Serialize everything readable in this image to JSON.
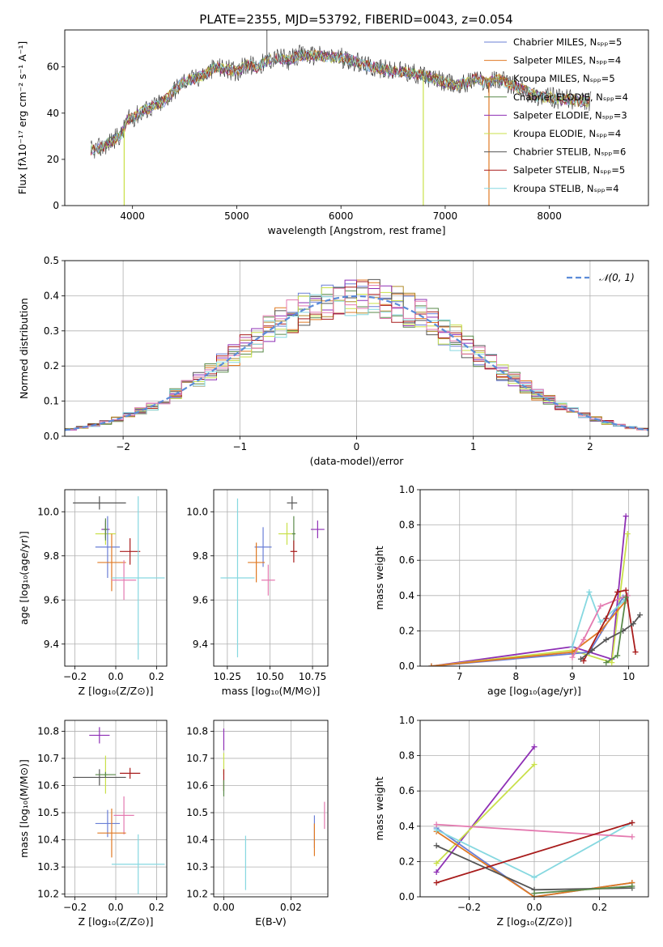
{
  "title": "PLATE=2355, MJD=53792, FIBERID=0043, z=0.054",
  "colors": {
    "chabrier_miles": "#6a7fd6",
    "salpeter_miles": "#e07a24",
    "kroupa_miles": "#b08a2a",
    "chabrier_elodie": "#5a8a4a",
    "salpeter_elodie": "#8e2fb5",
    "kroupa_elodie": "#c9e04a",
    "chabrier_stelib": "#555555",
    "salpeter_stelib": "#a81c1c",
    "kroupa_stelib": "#86d8e0",
    "pink": "#e47ab0",
    "gaussian": "#5b8bd8",
    "spectrum": "#333333"
  },
  "chart_data": [
    {
      "type": "line",
      "title": "PLATE=2355, MJD=53792, FIBERID=0043, z=0.054",
      "xlabel": "wavelength [Angstrom, rest frame]",
      "ylabel": "Flux [fλ10⁻¹⁷ erg cm⁻² s⁻¹ A⁻¹]",
      "xlim": [
        3350,
        8950
      ],
      "ylim": [
        0,
        76
      ],
      "xticks": [
        "4000",
        "5000",
        "6000",
        "7000",
        "8000"
      ],
      "yticks": [
        "0",
        "20",
        "40",
        "60"
      ],
      "legend_position": "top-right",
      "legend": [
        "Chabrier MILES, Nₛₚₚ=5",
        "Salpeter MILES, Nₛₚₚ=4",
        "Kroupa MILES, Nₛₚₚ=5",
        "Chabrier ELODIE, Nₛₚₚ=4",
        "Salpeter ELODIE, Nₛₚₚ=3",
        "Kroupa ELODIE, Nₛₚₚ=4",
        "Chabrier STELIB, Nₛₚₚ=6",
        "Salpeter STELIB, Nₛₚₚ=5",
        "Kroupa STELIB, Nₛₚₚ=4"
      ],
      "spectrum_shape": [
        [
          3600,
          24
        ],
        [
          3700,
          25
        ],
        [
          3800,
          28
        ],
        [
          3900,
          31
        ],
        [
          3950,
          37
        ],
        [
          4000,
          38
        ],
        [
          4100,
          41
        ],
        [
          4200,
          43
        ],
        [
          4300,
          45
        ],
        [
          4400,
          50
        ],
        [
          4500,
          54
        ],
        [
          4600,
          55
        ],
        [
          4700,
          57
        ],
        [
          4800,
          60
        ],
        [
          4900,
          59
        ],
        [
          5000,
          58
        ],
        [
          5100,
          61
        ],
        [
          5200,
          60
        ],
        [
          5300,
          63
        ],
        [
          5400,
          64
        ],
        [
          5500,
          63
        ],
        [
          5600,
          65
        ],
        [
          5700,
          65
        ],
        [
          5800,
          65
        ],
        [
          5900,
          64
        ],
        [
          6000,
          64
        ],
        [
          6100,
          63
        ],
        [
          6200,
          61
        ],
        [
          6300,
          60
        ],
        [
          6400,
          59
        ],
        [
          6500,
          58
        ],
        [
          6600,
          58
        ],
        [
          6700,
          57
        ],
        [
          6800,
          56
        ],
        [
          6900,
          55
        ],
        [
          7000,
          53
        ],
        [
          7100,
          52
        ],
        [
          7200,
          53
        ],
        [
          7300,
          55
        ],
        [
          7400,
          53
        ],
        [
          7500,
          55
        ],
        [
          7600,
          53
        ],
        [
          7700,
          51
        ],
        [
          7800,
          49
        ],
        [
          7900,
          47
        ],
        [
          8000,
          47
        ],
        [
          8100,
          46
        ],
        [
          8200,
          46
        ],
        [
          8300,
          45
        ],
        [
          8400,
          45
        ]
      ],
      "model_cutoffs": [
        3920,
        6790,
        7420
      ]
    },
    {
      "type": "line",
      "xlabel": "(data-model)/error",
      "ylabel": "Normed distribution",
      "xlim": [
        -2.5,
        2.5
      ],
      "ylim": [
        0,
        0.5
      ],
      "xticks": [
        "−2",
        "−1",
        "0",
        "1",
        "2"
      ],
      "yticks": [
        "0.0",
        "0.1",
        "0.2",
        "0.3",
        "0.4",
        "0.5"
      ],
      "legend_position": "top-right",
      "legend": [
        "𝒩(0, 1)"
      ],
      "bin_width": 0.1,
      "series": [
        {
          "name": "",
          "color_key": "chabrier_miles",
          "seed": 1
        },
        {
          "name": "",
          "color_key": "salpeter_miles",
          "seed": 2
        },
        {
          "name": "",
          "color_key": "kroupa_miles",
          "seed": 3
        },
        {
          "name": "",
          "color_key": "chabrier_elodie",
          "seed": 4
        },
        {
          "name": "",
          "color_key": "salpeter_elodie",
          "seed": 5
        },
        {
          "name": "",
          "color_key": "kroupa_elodie",
          "seed": 6
        },
        {
          "name": "",
          "color_key": "chabrier_stelib",
          "seed": 7
        },
        {
          "name": "",
          "color_key": "salpeter_stelib",
          "seed": 8
        },
        {
          "name": "",
          "color_key": "kroupa_stelib",
          "seed": 9
        },
        {
          "name": "",
          "color_key": "pink",
          "seed": 10
        }
      ]
    },
    {
      "type": "scatter",
      "xlabel": "Z [log₁₀(Z/Z⊙)]",
      "ylabel": "age  [log₁₀(age/yr)]",
      "xlim": [
        -0.25,
        0.25
      ],
      "ylim": [
        9.3,
        10.1
      ],
      "xticks": [
        "−0.2",
        "0.0",
        "0.2"
      ],
      "yticks": [
        "9.4",
        "9.6",
        "9.8",
        "10.0"
      ],
      "points": [
        {
          "x": -0.08,
          "y": 10.04,
          "xerr": 0.13,
          "yerr": 0.03,
          "color_key": "chabrier_stelib"
        },
        {
          "x": -0.05,
          "y": 9.9,
          "xerr": 0.05,
          "yerr": 0.05,
          "color_key": "kroupa_elodie"
        },
        {
          "x": -0.05,
          "y": 9.92,
          "xerr": 0.02,
          "yerr": 0.04,
          "color_key": "salpeter_elodie"
        },
        {
          "x": -0.04,
          "y": 9.84,
          "xerr": 0.06,
          "yerr": 0.14,
          "color_key": "chabrier_miles"
        },
        {
          "x": -0.02,
          "y": 9.77,
          "xerr": 0.07,
          "yerr": 0.13,
          "color_key": "salpeter_miles"
        },
        {
          "x": 0.07,
          "y": 9.82,
          "xerr": 0.05,
          "yerr": 0.06,
          "color_key": "salpeter_stelib"
        },
        {
          "x": 0.04,
          "y": 9.69,
          "xerr": 0.06,
          "yerr": 0.09,
          "color_key": "pink"
        },
        {
          "x": 0.11,
          "y": 9.7,
          "xerr": 0.13,
          "yerr": 0.37,
          "color_key": "kroupa_stelib"
        },
        {
          "x": -0.05,
          "y": 9.92,
          "xerr": 0.01,
          "yerr": 0.05,
          "color_key": "chabrier_elodie"
        }
      ]
    },
    {
      "type": "scatter",
      "xlabel": "mass [log₁₀(M/M⊙)]",
      "xlim": [
        10.17,
        10.84
      ],
      "ylim": [
        9.3,
        10.1
      ],
      "xticks": [
        "10.25",
        "10.50",
        "10.75"
      ],
      "yticks": [
        "9.4",
        "9.6",
        "9.8",
        "10.0"
      ],
      "points": [
        {
          "x": 10.63,
          "y": 10.04,
          "xerr": 0.03,
          "yerr": 0.03,
          "color_key": "chabrier_stelib"
        },
        {
          "x": 10.78,
          "y": 9.92,
          "xerr": 0.04,
          "yerr": 0.04,
          "color_key": "salpeter_elodie"
        },
        {
          "x": 10.6,
          "y": 9.9,
          "xerr": 0.05,
          "yerr": 0.05,
          "color_key": "kroupa_elodie"
        },
        {
          "x": 10.64,
          "y": 9.9,
          "xerr": 0.01,
          "yerr": 0.08,
          "color_key": "chabrier_elodie"
        },
        {
          "x": 10.46,
          "y": 9.84,
          "xerr": 0.05,
          "yerr": 0.09,
          "color_key": "chabrier_miles"
        },
        {
          "x": 10.64,
          "y": 9.82,
          "xerr": 0.02,
          "yerr": 0.05,
          "color_key": "salpeter_stelib"
        },
        {
          "x": 10.42,
          "y": 9.77,
          "xerr": 0.05,
          "yerr": 0.09,
          "color_key": "salpeter_miles"
        },
        {
          "x": 10.49,
          "y": 9.69,
          "xerr": 0.04,
          "yerr": 0.07,
          "color_key": "pink"
        },
        {
          "x": 10.31,
          "y": 9.7,
          "xerr": 0.1,
          "yerr": 0.36,
          "color_key": "kroupa_stelib"
        }
      ]
    },
    {
      "type": "line",
      "xlabel": "age  [log₁₀(age/yr)]",
      "ylabel": "mass weight",
      "xlim": [
        6.3,
        10.35
      ],
      "ylim": [
        0,
        1
      ],
      "xticks": [
        "7",
        "8",
        "9",
        "10"
      ],
      "yticks": [
        "0.0",
        "0.2",
        "0.4",
        "0.6",
        "0.8",
        "1.0"
      ],
      "series": [
        {
          "color_key": "salpeter_elodie",
          "x": [
            6.5,
            9.0,
            9.7,
            9.95
          ],
          "y": [
            0.0,
            0.11,
            0.04,
            0.85
          ]
        },
        {
          "color_key": "kroupa_elodie",
          "x": [
            6.5,
            9.0,
            9.7,
            9.98
          ],
          "y": [
            0.0,
            0.09,
            0.02,
            0.75
          ]
        },
        {
          "color_key": "chabrier_miles",
          "x": [
            6.5,
            9.0,
            9.3,
            9.9
          ],
          "y": [
            0.0,
            0.07,
            0.08,
            0.39
          ]
        },
        {
          "color_key": "salpeter_miles",
          "x": [
            6.5,
            9.0,
            9.5,
            9.95
          ],
          "y": [
            0.0,
            0.08,
            0.2,
            0.37
          ]
        },
        {
          "color_key": "kroupa_stelib",
          "x": [
            9.0,
            9.3,
            9.5,
            9.95
          ],
          "y": [
            0.11,
            0.42,
            0.25,
            0.38
          ]
        },
        {
          "color_key": "pink",
          "x": [
            9.0,
            9.2,
            9.5,
            9.98
          ],
          "y": [
            0.05,
            0.15,
            0.34,
            0.4
          ]
        },
        {
          "color_key": "salpeter_stelib",
          "x": [
            9.2,
            9.6,
            9.8,
            9.95,
            10.12
          ],
          "y": [
            0.03,
            0.27,
            0.42,
            0.43,
            0.08
          ]
        },
        {
          "color_key": "chabrier_stelib",
          "x": [
            9.15,
            9.35,
            9.6,
            9.9,
            10.08,
            10.2
          ],
          "y": [
            0.04,
            0.09,
            0.15,
            0.2,
            0.24,
            0.29
          ]
        },
        {
          "color_key": "chabrier_elodie",
          "x": [
            9.6,
            9.8,
            9.95
          ],
          "y": [
            0.02,
            0.06,
            0.39
          ]
        }
      ]
    },
    {
      "type": "scatter",
      "xlabel": "Z [log₁₀(Z/Z⊙)]",
      "ylabel": "mass [log₁₀(M/M⊙)]",
      "xlim": [
        -0.25,
        0.25
      ],
      "ylim": [
        10.19,
        10.84
      ],
      "xticks": [
        "−0.2",
        "0.0",
        "0.2"
      ],
      "yticks": [
        "10.2",
        "10.3",
        "10.4",
        "10.5",
        "10.6",
        "10.7",
        "10.8"
      ],
      "points": [
        {
          "x": -0.08,
          "y": 10.785,
          "xerr": 0.05,
          "yerr": 0.03,
          "color_key": "salpeter_elodie"
        },
        {
          "x": -0.05,
          "y": 10.64,
          "xerr": 0.01,
          "yerr": 0.07,
          "color_key": "kroupa_elodie"
        },
        {
          "x": -0.08,
          "y": 10.63,
          "xerr": 0.13,
          "yerr": 0.03,
          "color_key": "chabrier_stelib"
        },
        {
          "x": -0.05,
          "y": 10.64,
          "xerr": 0.05,
          "yerr": 0.01,
          "color_key": "chabrier_elodie"
        },
        {
          "x": 0.07,
          "y": 10.645,
          "xerr": 0.05,
          "yerr": 0.02,
          "color_key": "salpeter_stelib"
        },
        {
          "x": 0.04,
          "y": 10.49,
          "xerr": 0.05,
          "yerr": 0.07,
          "color_key": "pink"
        },
        {
          "x": -0.04,
          "y": 10.46,
          "xerr": 0.06,
          "yerr": 0.05,
          "color_key": "chabrier_miles"
        },
        {
          "x": -0.02,
          "y": 10.425,
          "xerr": 0.07,
          "yerr": 0.09,
          "color_key": "salpeter_miles"
        },
        {
          "x": 0.11,
          "y": 10.31,
          "xerr": 0.13,
          "yerr": 0.11,
          "color_key": "kroupa_stelib"
        }
      ]
    },
    {
      "type": "scatter",
      "xlabel": "E(B-V)",
      "xlim": [
        -0.003,
        0.031
      ],
      "ylim": [
        10.19,
        10.84
      ],
      "xticks": [
        "0.00",
        "0.02"
      ],
      "yticks": [
        "10.2",
        "10.3",
        "10.4",
        "10.5",
        "10.6",
        "10.7",
        "10.8"
      ],
      "points": [
        {
          "x": 0.0,
          "y": 10.77,
          "xerr": 0,
          "yerr": 0.04,
          "color_key": "salpeter_elodie"
        },
        {
          "x": 0.0,
          "y": 10.68,
          "xerr": 0,
          "yerr": 0.04,
          "color_key": "kroupa_elodie"
        },
        {
          "x": 0.0,
          "y": 10.62,
          "xerr": 0,
          "yerr": 0.04,
          "color_key": "salpeter_stelib"
        },
        {
          "x": 0.0,
          "y": 10.59,
          "xerr": 0,
          "yerr": 0.03,
          "color_key": "chabrier_elodie"
        },
        {
          "x": 0.0065,
          "y": 10.315,
          "xerr": 0,
          "yerr": 0.1,
          "color_key": "kroupa_stelib"
        },
        {
          "x": 0.027,
          "y": 10.43,
          "xerr": 0,
          "yerr": 0.06,
          "color_key": "chabrier_miles"
        },
        {
          "x": 0.027,
          "y": 10.4,
          "xerr": 0,
          "yerr": 0.06,
          "color_key": "salpeter_miles"
        },
        {
          "x": 0.03,
          "y": 10.49,
          "xerr": 0,
          "yerr": 0.05,
          "color_key": "pink"
        }
      ]
    },
    {
      "type": "line",
      "xlabel": "Z [log₁₀(Z/Z⊙)]",
      "ylabel": "mass weight",
      "xlim": [
        -0.35,
        0.35
      ],
      "ylim": [
        0,
        1
      ],
      "xticks": [
        "−0.2",
        "0.0",
        "0.2"
      ],
      "yticks": [
        "0.0",
        "0.2",
        "0.4",
        "0.6",
        "0.8",
        "1.0"
      ],
      "series": [
        {
          "color_key": "salpeter_elodie",
          "x": [
            -0.3,
            0.0
          ],
          "y": [
            0.14,
            0.85
          ]
        },
        {
          "color_key": "kroupa_elodie",
          "x": [
            -0.3,
            0.0
          ],
          "y": [
            0.19,
            0.75
          ]
        },
        {
          "color_key": "chabrier_miles",
          "x": [
            -0.3,
            0.0,
            0.3
          ],
          "y": [
            0.39,
            0.0,
            0.08
          ]
        },
        {
          "color_key": "salpeter_miles",
          "x": [
            -0.3,
            0.0,
            0.3
          ],
          "y": [
            0.37,
            0.0,
            0.08
          ]
        },
        {
          "color_key": "kroupa_stelib",
          "x": [
            -0.3,
            0.0,
            0.3
          ],
          "y": [
            0.38,
            0.11,
            0.42
          ]
        },
        {
          "color_key": "pink",
          "x": [
            -0.3,
            0.3
          ],
          "y": [
            0.41,
            0.34
          ]
        },
        {
          "color_key": "salpeter_stelib",
          "x": [
            -0.3,
            0.3
          ],
          "y": [
            0.08,
            0.42
          ]
        },
        {
          "color_key": "chabrier_stelib",
          "x": [
            -0.3,
            0.0,
            0.3
          ],
          "y": [
            0.29,
            0.04,
            0.05
          ]
        },
        {
          "color_key": "chabrier_elodie",
          "x": [
            0.0,
            0.3
          ],
          "y": [
            0.02,
            0.06
          ]
        }
      ]
    }
  ]
}
